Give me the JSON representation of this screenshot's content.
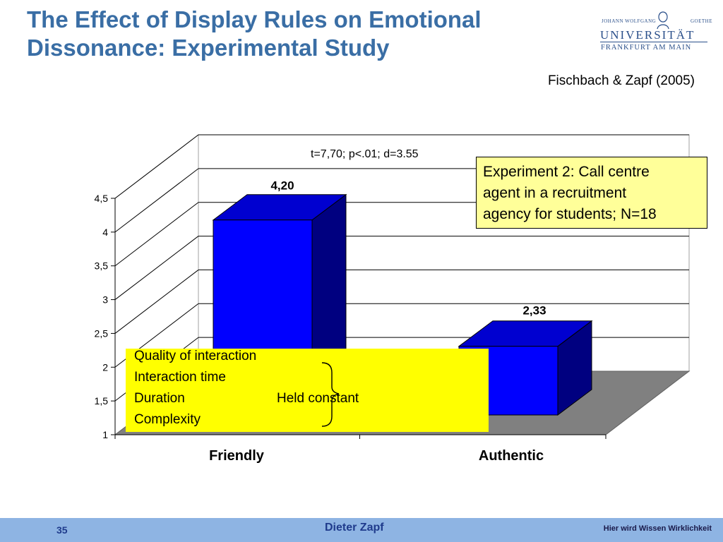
{
  "slide": {
    "title_line1": "The Effect of Display Rules on Emotional",
    "title_line2": "Dissonance: Experimental Study",
    "citation": "Fischbach & Zapf (2005)"
  },
  "logo": {
    "top_left": "JOHANN WOLFGANG",
    "top_right": "GOETHE",
    "university": "UNIVERSITÄT",
    "city": "FRANKFURT AM MAIN"
  },
  "experiment_box": {
    "lines": [
      "Experiment 2: Call centre",
      "agent in a recruitment",
      "agency for students; N=18"
    ]
  },
  "controls_box": {
    "items": [
      "Quality of interaction",
      "Interaction time",
      "Duration",
      "Complexity"
    ],
    "held_label": "Held constant"
  },
  "chart_data": {
    "type": "bar",
    "title": "",
    "xlabel": "",
    "ylabel": "",
    "categories": [
      "Friendly",
      "Authentic"
    ],
    "values": [
      4.2,
      2.33
    ],
    "value_labels": [
      "4,20",
      "2,33"
    ],
    "yticks": [
      "1",
      "1,5",
      "2",
      "2,5",
      "3",
      "3,5",
      "4",
      "4,5"
    ],
    "ylim": [
      1,
      4.5
    ],
    "grid": true,
    "annotation": "t=7,70; p<.01; d=3.55",
    "colors": {
      "bar_front": "#0000ff",
      "bar_top": "#0000d0",
      "bar_side": "#000080",
      "floor": "#808080"
    }
  },
  "footer": {
    "page_number": "35",
    "author": "Dieter Zapf",
    "slogan": "Hier wird Wissen Wirklichkeit",
    "background": "#8eb4e3"
  }
}
